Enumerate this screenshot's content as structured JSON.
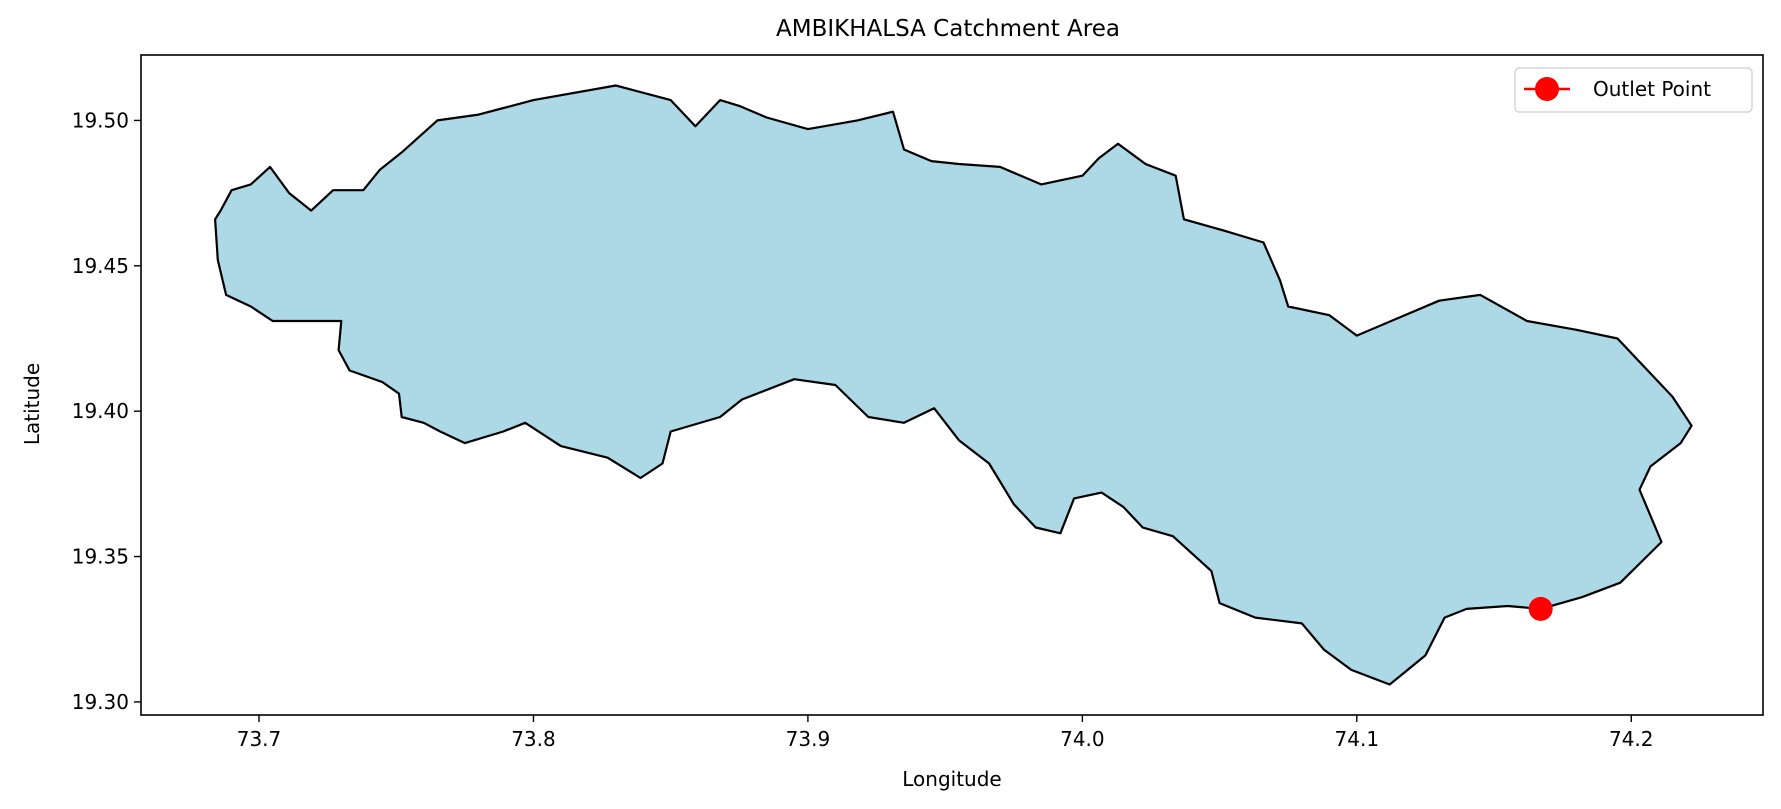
{
  "map": {
    "title": "AMBIKHALSA Catchment Area",
    "xlabel": "Longitude",
    "ylabel": "Latitude",
    "xlim": [
      73.657,
      74.248
    ],
    "ylim": [
      19.2955,
      19.5225
    ],
    "x_ticks": [
      73.7,
      73.8,
      73.9,
      74.0,
      74.1,
      74.2
    ],
    "x_tick_labels": [
      "73.7",
      "73.8",
      "73.9",
      "74.0",
      "74.1",
      "74.2"
    ],
    "y_ticks": [
      19.3,
      19.35,
      19.4,
      19.45,
      19.5
    ],
    "y_tick_labels": [
      "19.30",
      "19.35",
      "19.40",
      "19.45",
      "19.50"
    ],
    "catchment_fill": "#add8e6",
    "catchment_edge": "#000000",
    "outlet_color": "#ff0000",
    "legend": {
      "label": "Outlet Point",
      "position": "top-right"
    },
    "outlet": {
      "lon": 74.167,
      "lat": 19.332
    },
    "boundary": [
      [
        73.684,
        19.466
      ],
      [
        73.685,
        19.452
      ],
      [
        73.688,
        19.44
      ],
      [
        73.697,
        19.436
      ],
      [
        73.705,
        19.431
      ],
      [
        73.718,
        19.431
      ],
      [
        73.73,
        19.431
      ],
      [
        73.729,
        19.421
      ],
      [
        73.733,
        19.414
      ],
      [
        73.745,
        19.41
      ],
      [
        73.751,
        19.406
      ],
      [
        73.752,
        19.398
      ],
      [
        73.76,
        19.396
      ],
      [
        73.766,
        19.393
      ],
      [
        73.775,
        19.389
      ],
      [
        73.789,
        19.393
      ],
      [
        73.797,
        19.396
      ],
      [
        73.81,
        19.388
      ],
      [
        73.827,
        19.384
      ],
      [
        73.839,
        19.377
      ],
      [
        73.847,
        19.382
      ],
      [
        73.85,
        19.393
      ],
      [
        73.868,
        19.398
      ],
      [
        73.876,
        19.404
      ],
      [
        73.895,
        19.411
      ],
      [
        73.91,
        19.409
      ],
      [
        73.922,
        19.398
      ],
      [
        73.935,
        19.396
      ],
      [
        73.946,
        19.401
      ],
      [
        73.955,
        19.39
      ],
      [
        73.966,
        19.382
      ],
      [
        73.975,
        19.368
      ],
      [
        73.983,
        19.36
      ],
      [
        73.992,
        19.358
      ],
      [
        73.997,
        19.37
      ],
      [
        74.007,
        19.372
      ],
      [
        74.015,
        19.367
      ],
      [
        74.022,
        19.36
      ],
      [
        74.033,
        19.357
      ],
      [
        74.047,
        19.345
      ],
      [
        74.05,
        19.334
      ],
      [
        74.063,
        19.329
      ],
      [
        74.08,
        19.327
      ],
      [
        74.088,
        19.318
      ],
      [
        74.098,
        19.311
      ],
      [
        74.112,
        19.306
      ],
      [
        74.125,
        19.316
      ],
      [
        74.132,
        19.329
      ],
      [
        74.14,
        19.332
      ],
      [
        74.155,
        19.333
      ],
      [
        74.167,
        19.332
      ],
      [
        74.182,
        19.336
      ],
      [
        74.196,
        19.341
      ],
      [
        74.211,
        19.355
      ],
      [
        74.207,
        19.364
      ],
      [
        74.203,
        19.373
      ],
      [
        74.207,
        19.381
      ],
      [
        74.218,
        19.389
      ],
      [
        74.222,
        19.395
      ],
      [
        74.215,
        19.405
      ],
      [
        74.205,
        19.415
      ],
      [
        74.195,
        19.425
      ],
      [
        74.18,
        19.428
      ],
      [
        74.162,
        19.431
      ],
      [
        74.145,
        19.44
      ],
      [
        74.13,
        19.438
      ],
      [
        74.115,
        19.432
      ],
      [
        74.1,
        19.426
      ],
      [
        74.09,
        19.433
      ],
      [
        74.075,
        19.436
      ],
      [
        74.072,
        19.445
      ],
      [
        74.066,
        19.458
      ],
      [
        74.052,
        19.462
      ],
      [
        74.037,
        19.466
      ],
      [
        74.034,
        19.481
      ],
      [
        74.023,
        19.485
      ],
      [
        74.013,
        19.492
      ],
      [
        74.006,
        19.487
      ],
      [
        74.0,
        19.481
      ],
      [
        73.985,
        19.478
      ],
      [
        73.97,
        19.484
      ],
      [
        73.955,
        19.485
      ],
      [
        73.945,
        19.486
      ],
      [
        73.935,
        19.49
      ],
      [
        73.931,
        19.503
      ],
      [
        73.918,
        19.5
      ],
      [
        73.9,
        19.497
      ],
      [
        73.885,
        19.501
      ],
      [
        73.875,
        19.505
      ],
      [
        73.868,
        19.507
      ],
      [
        73.859,
        19.498
      ],
      [
        73.85,
        19.507
      ],
      [
        73.83,
        19.512
      ],
      [
        73.8,
        19.507
      ],
      [
        73.78,
        19.502
      ],
      [
        73.765,
        19.5
      ],
      [
        73.752,
        19.489
      ],
      [
        73.744,
        19.483
      ],
      [
        73.738,
        19.476
      ],
      [
        73.727,
        19.476
      ],
      [
        73.719,
        19.469
      ],
      [
        73.711,
        19.475
      ],
      [
        73.704,
        19.484
      ],
      [
        73.697,
        19.478
      ],
      [
        73.69,
        19.476
      ],
      [
        73.686,
        19.469
      ]
    ]
  }
}
